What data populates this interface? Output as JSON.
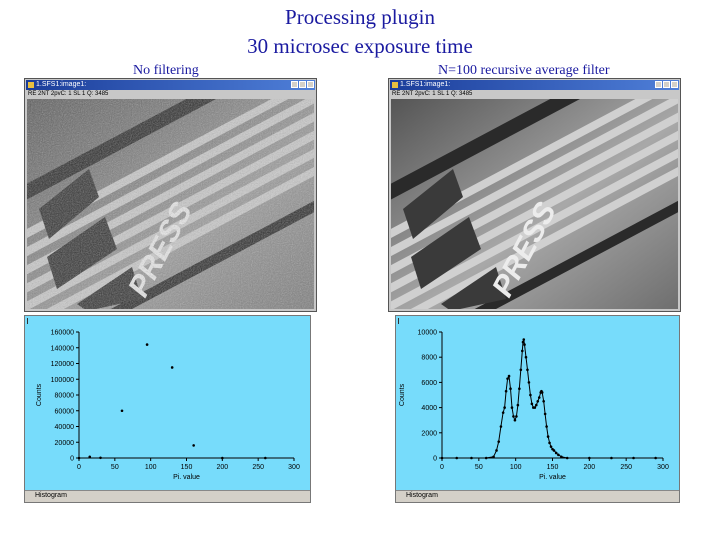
{
  "slide": {
    "title_line1": "Processing plugin",
    "title_line2": "30 microsec exposure time"
  },
  "panels": [
    {
      "caption": "No filtering",
      "image_window": {
        "title": "1.SFS1:image1:",
        "info": "RE 2NT 2pvC: 1 SL 1 Q: 3485"
      },
      "histogram_window": {
        "status_label": "Histogram"
      }
    },
    {
      "caption": "N=100 recursive average filter",
      "image_window": {
        "title": "1.SFS1:image1:",
        "info": "RE 2NT 2pvC: 1 SL 1 Q: 3485"
      },
      "histogram_window": {
        "status_label": "Histogram"
      }
    }
  ],
  "chart_data": [
    {
      "type": "scatter",
      "title": "",
      "xlabel": "Pi. value",
      "ylabel": "Counts",
      "xlim": [
        0,
        300
      ],
      "ylim": [
        0,
        160000
      ],
      "x_ticks": [
        "0",
        "50",
        "100",
        "150",
        "200",
        "250",
        "300"
      ],
      "y_ticks": [
        "0",
        "20000",
        "40000",
        "60000",
        "80000",
        "100000",
        "120000",
        "140000",
        "160000"
      ],
      "grid": false,
      "marker_color": "#000000",
      "points": [
        {
          "x": 0,
          "y": 0
        },
        {
          "x": 15,
          "y": 1500
        },
        {
          "x": 30,
          "y": 300
        },
        {
          "x": 60,
          "y": 60000
        },
        {
          "x": 95,
          "y": 144000
        },
        {
          "x": 130,
          "y": 115000
        },
        {
          "x": 160,
          "y": 16000
        },
        {
          "x": 200,
          "y": 0
        },
        {
          "x": 260,
          "y": 0
        }
      ]
    },
    {
      "type": "line",
      "title": "",
      "xlabel": "Pi. value",
      "ylabel": "Counts",
      "xlim": [
        0,
        300
      ],
      "ylim": [
        0,
        10000
      ],
      "x_ticks": [
        "0",
        "50",
        "100",
        "150",
        "200",
        "250",
        "300"
      ],
      "y_ticks": [
        "0",
        "2000",
        "4000",
        "6000",
        "8000",
        "10000"
      ],
      "grid": false,
      "marker_color": "#000000",
      "series": [
        {
          "points": [
            [
              0,
              0
            ],
            [
              20,
              0
            ],
            [
              40,
              0
            ],
            [
              60,
              0
            ],
            [
              70,
              100
            ],
            [
              74,
              600
            ],
            [
              77,
              1300
            ],
            [
              80,
              2500
            ],
            [
              83,
              3600
            ],
            [
              85,
              4000
            ],
            [
              87,
              5300
            ],
            [
              89,
              6300
            ],
            [
              91,
              6500
            ],
            [
              93,
              5500
            ],
            [
              95,
              4000
            ],
            [
              97,
              3300
            ],
            [
              99,
              3000
            ],
            [
              101,
              3300
            ],
            [
              103,
              4200
            ],
            [
              105,
              5500
            ],
            [
              107,
              7000
            ],
            [
              109,
              8500
            ],
            [
              110,
              9200
            ],
            [
              111,
              9400
            ],
            [
              112,
              9000
            ],
            [
              114,
              8000
            ],
            [
              116,
              7000
            ],
            [
              118,
              6000
            ],
            [
              120,
              5000
            ],
            [
              122,
              4300
            ],
            [
              124,
              4000
            ],
            [
              126,
              4000
            ],
            [
              128,
              4200
            ],
            [
              130,
              4500
            ],
            [
              132,
              4800
            ],
            [
              134,
              5200
            ],
            [
              135,
              5300
            ],
            [
              136,
              5200
            ],
            [
              138,
              4500
            ],
            [
              140,
              3500
            ],
            [
              142,
              2500
            ],
            [
              144,
              1700
            ],
            [
              146,
              1200
            ],
            [
              148,
              900
            ],
            [
              150,
              700
            ],
            [
              152,
              600
            ],
            [
              155,
              400
            ],
            [
              158,
              250
            ],
            [
              162,
              100
            ],
            [
              170,
              0
            ],
            [
              200,
              0
            ],
            [
              230,
              0
            ],
            [
              260,
              0
            ],
            [
              290,
              0
            ]
          ]
        }
      ]
    }
  ]
}
